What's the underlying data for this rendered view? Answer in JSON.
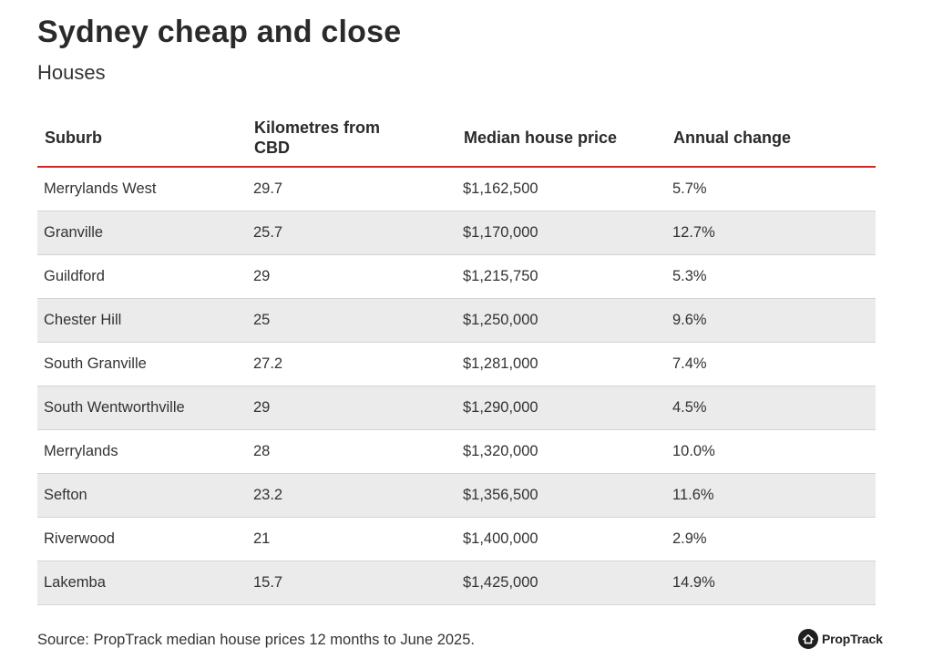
{
  "title": "Sydney cheap and close",
  "subtitle": "Houses",
  "source": "Source: PropTrack median house prices 12 months to June 2025.",
  "brand": {
    "name": "PropTrack",
    "icon": "proptrack-house-icon"
  },
  "colors": {
    "header_rule": "#e0201b",
    "stripe": "#ebebeb",
    "text": "#333333"
  },
  "chart_data": {
    "type": "table",
    "title": "Sydney cheap and close",
    "subtitle": "Houses",
    "columns": [
      "Suburb",
      "Kilometres from CBD",
      "Median house price",
      "Annual change"
    ],
    "rows": [
      [
        "Merrylands West",
        "29.7",
        "$1,162,500",
        "5.7%"
      ],
      [
        "Granville",
        "25.7",
        "$1,170,000",
        "12.7%"
      ],
      [
        "Guildford",
        "29",
        "$1,215,750",
        "5.3%"
      ],
      [
        "Chester Hill",
        "25",
        "$1,250,000",
        "9.6%"
      ],
      [
        "South Granville",
        "27.2",
        "$1,281,000",
        "7.4%"
      ],
      [
        "South Wentworthville",
        "29",
        "$1,290,000",
        "4.5%"
      ],
      [
        "Merrylands",
        "28",
        "$1,320,000",
        "10.0%"
      ],
      [
        "Sefton",
        "23.2",
        "$1,356,500",
        "11.6%"
      ],
      [
        "Riverwood",
        "21",
        "$1,400,000",
        "2.9%"
      ],
      [
        "Lakemba",
        "15.7",
        "$1,425,000",
        "14.9%"
      ]
    ]
  }
}
